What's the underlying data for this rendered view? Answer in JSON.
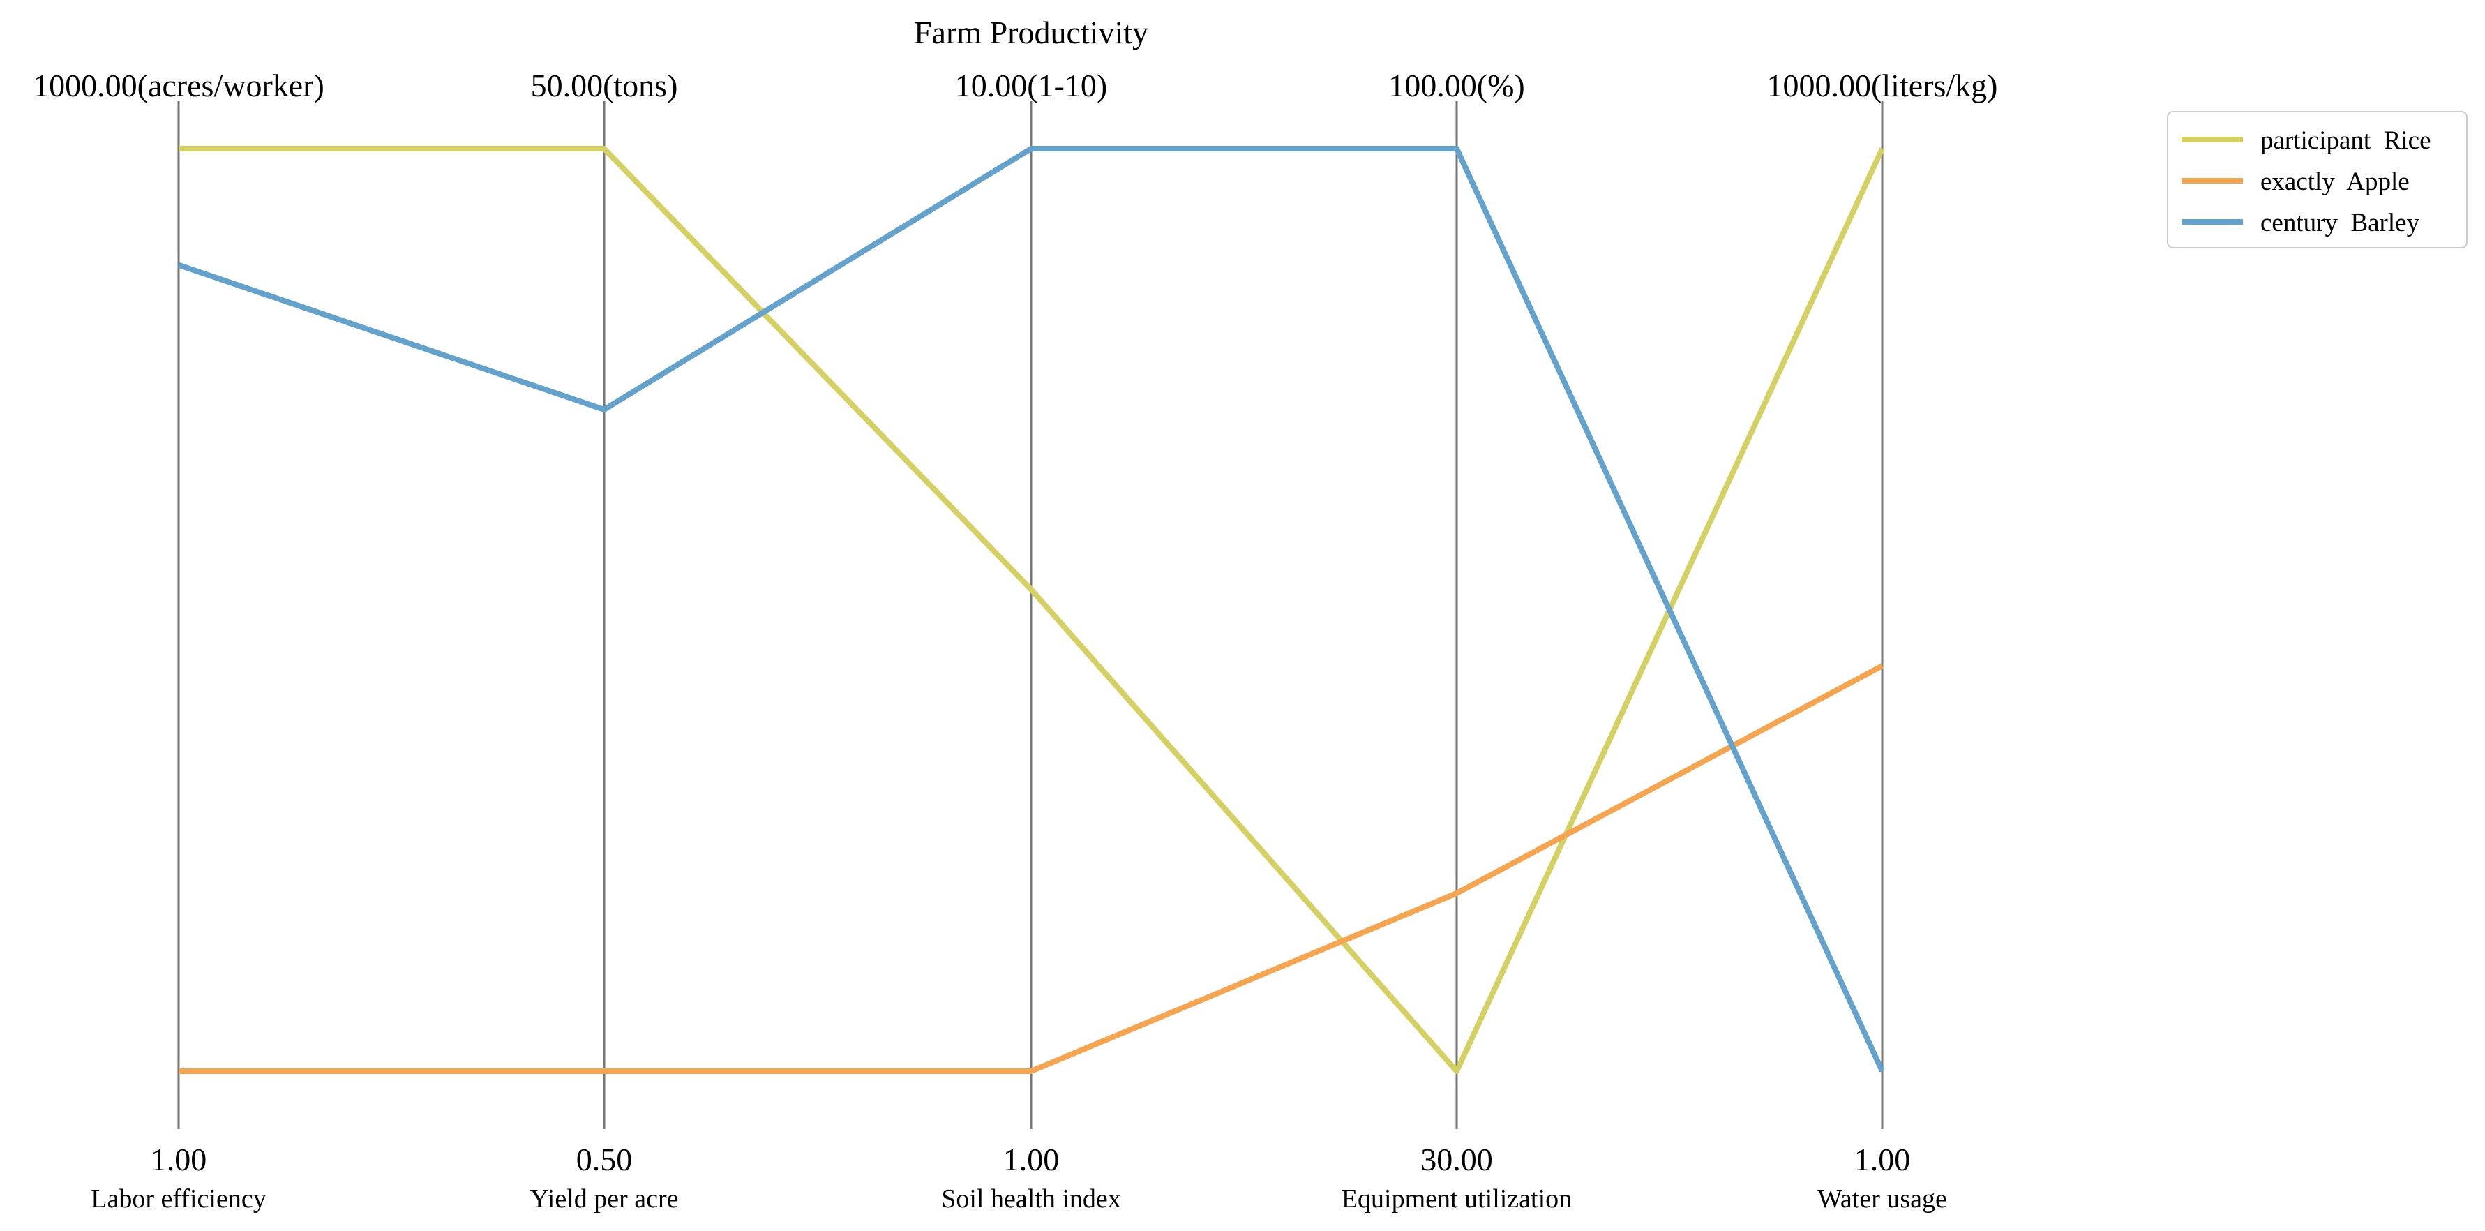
{
  "chart_data": {
    "type": "parallel-coordinates",
    "title": "Farm Productivity",
    "axes": [
      {
        "name": "Labor efficiency",
        "min": 1,
        "max": 1000,
        "min_label": "1.00",
        "max_label": "1000.00(acres/worker)"
      },
      {
        "name": "Yield per acre",
        "min": 0.5,
        "max": 50,
        "min_label": "0.50",
        "max_label": "50.00(tons)"
      },
      {
        "name": "Soil health index",
        "min": 1,
        "max": 10,
        "min_label": "1.00",
        "max_label": "10.00(1-10)"
      },
      {
        "name": "Equipment utilization",
        "min": 30,
        "max": 100,
        "min_label": "30.00",
        "max_label": "100.00(%)"
      },
      {
        "name": "Water usage",
        "min": 1,
        "max": 1000,
        "min_label": "1.00",
        "max_label": "1000.00(liters/kg)"
      }
    ],
    "series": [
      {
        "name": "participant  Rice",
        "color": "#d4d162",
        "values": [
          1000,
          50,
          5.7,
          30,
          1000
        ]
      },
      {
        "name": "exactly  Apple",
        "color": "#f7a44e",
        "values": [
          1,
          0.5,
          1,
          43.5,
          440
        ]
      },
      {
        "name": "century  Barley",
        "color": "#64a2ce",
        "values": [
          874,
          36,
          10,
          100,
          1
        ]
      }
    ],
    "legend": {
      "position": "top-right"
    },
    "grid": false
  }
}
